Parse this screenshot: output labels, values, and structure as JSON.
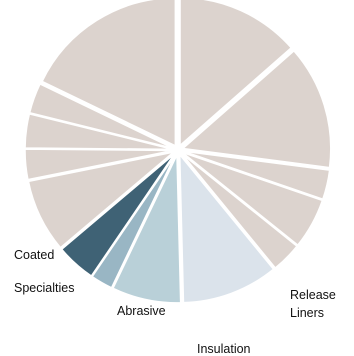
{
  "chart_data": {
    "type": "pie",
    "title": "",
    "start_angle_deg": 0,
    "direction": "clockwise",
    "exploded": true,
    "slices": [
      {
        "label": "",
        "value": 13.5,
        "color": "#dcd3ce"
      },
      {
        "label": "",
        "value": 13.5,
        "color": "#dcd3ce"
      },
      {
        "label": "",
        "value": 3.2,
        "color": "#dcd3ce"
      },
      {
        "label": "",
        "value": 5.5,
        "color": "#dcd3ce"
      },
      {
        "label": "",
        "value": 3.3,
        "color": "#dcd3ce"
      },
      {
        "label": "Release Liners",
        "value": 10.5,
        "color": "#dbe3eb"
      },
      {
        "label": "Insulation",
        "value": 7.5,
        "color": "#b9d0d8"
      },
      {
        "label": "Abrasive",
        "value": 2.4,
        "color": "#99b6c4"
      },
      {
        "label": "Coated Specialties",
        "value": 4.3,
        "color": "#3f6275"
      },
      {
        "label": "",
        "value": 8.0,
        "color": "#dcd3ce"
      },
      {
        "label": "",
        "value": 3.3,
        "color": "#dcd3ce"
      },
      {
        "label": "",
        "value": 3.7,
        "color": "#dcd3ce"
      },
      {
        "label": "",
        "value": 3.3,
        "color": "#dcd3ce"
      },
      {
        "label": "",
        "value": 17.8,
        "color": "#dcd3ce"
      }
    ]
  },
  "labels": {
    "coated": "Coated",
    "specialties": "Specialties",
    "abrasive": "Abrasive",
    "insulation": "Insulation",
    "release": "Release",
    "liners": "Liners"
  }
}
